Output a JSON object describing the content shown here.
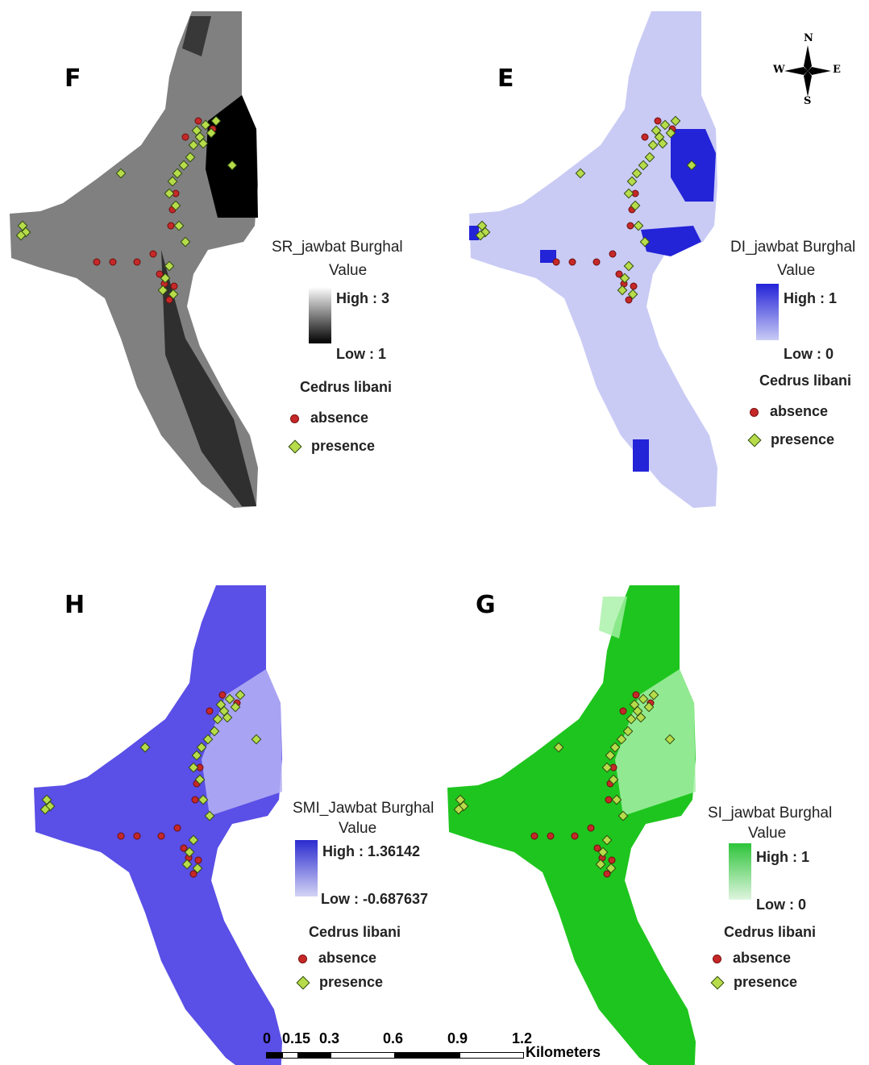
{
  "panels": {
    "F": {
      "letter": "F",
      "legend_title": "SR_jawbat Burghal",
      "value_label": "Value",
      "high_label": "High : 3",
      "low_label": "Low : 1",
      "ramp_colors": [
        "#ffffff",
        "#000000"
      ],
      "species": "Cedrus libani",
      "absence": "absence",
      "presence": "presence",
      "fill": "#808080"
    },
    "E": {
      "letter": "E",
      "legend_title": "DI_jawbat Burghal",
      "value_label": "Value",
      "high_label": "High : 1",
      "low_label": "Low : 0",
      "ramp_colors": [
        "#2323d8",
        "#c9cbf5"
      ],
      "species": "Cedrus libani",
      "absence": "absence",
      "presence": "presence",
      "fill": "#c9cbf5"
    },
    "H": {
      "letter": "H",
      "legend_title": "SMI_Jawbat Burghal",
      "value_label": "Value",
      "high_label": "High : 1.36142",
      "low_label": "Low : -0.687637",
      "ramp_colors": [
        "#2b2bd0",
        "#d4d4f5"
      ],
      "species": "Cedrus libani",
      "absence": "absence",
      "presence": "presence",
      "fill": "#5a4fe6"
    },
    "G": {
      "letter": "G",
      "legend_title": "SI_jawbat Burghal",
      "value_label": "Value",
      "high_label": "High : 1",
      "low_label": "Low : 0",
      "ramp_colors": [
        "#2ec43a",
        "#dff5df"
      ],
      "species": "Cedrus libani",
      "absence": "absence",
      "presence": "presence",
      "fill": "#1ec51e"
    }
  },
  "compass": {
    "n": "N",
    "s": "S",
    "e": "E",
    "w": "W"
  },
  "scale": {
    "ticks": [
      "0",
      "0.15",
      "0.3",
      "0.6",
      "0.9",
      "1.2"
    ],
    "units": "Kilometers"
  },
  "colors": {
    "absence": "#c62828",
    "presence": "#b7dc4a"
  }
}
